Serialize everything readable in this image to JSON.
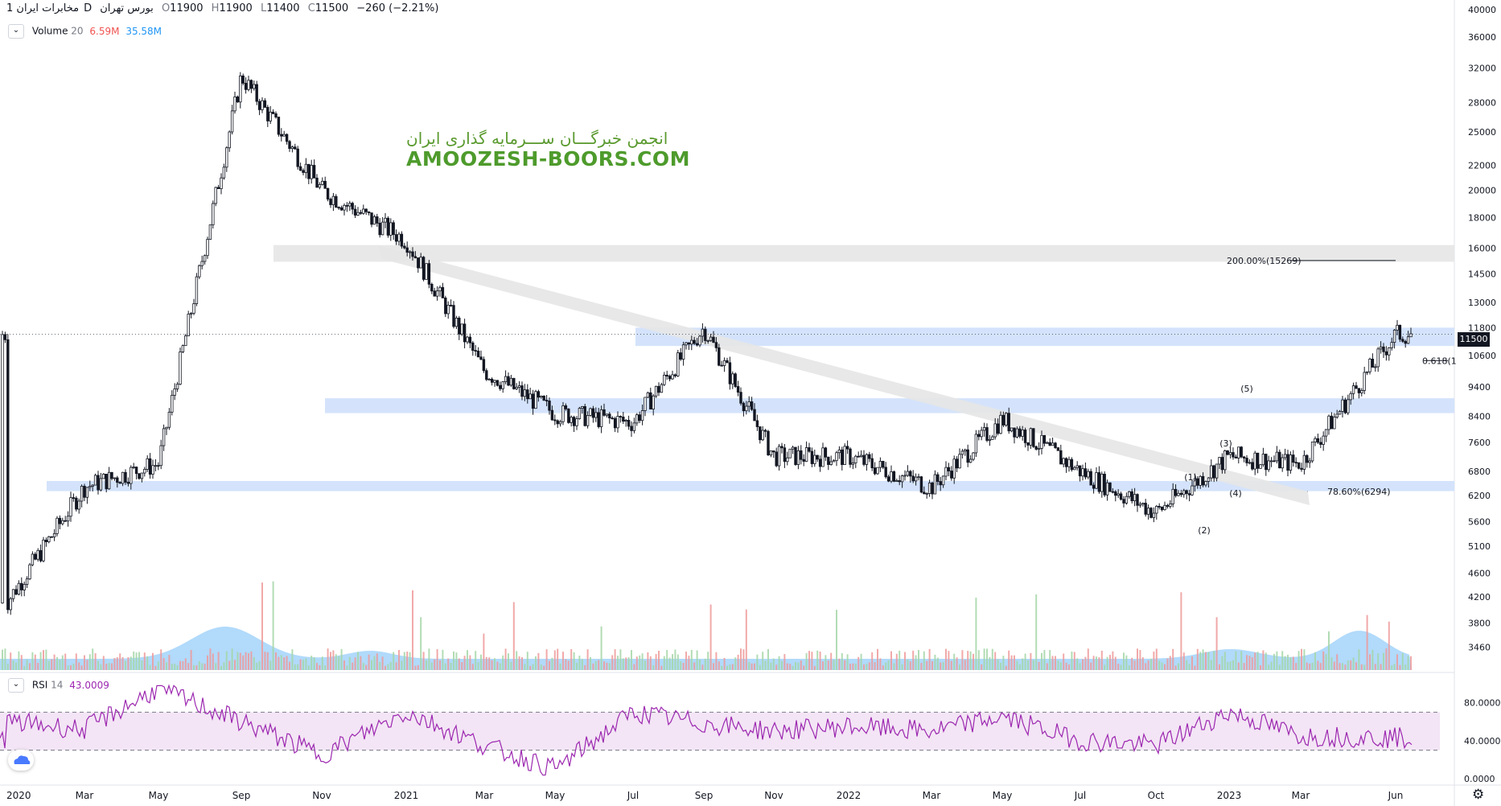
{
  "header": {
    "symbol": "مخابرات ایران",
    "interval": "1D",
    "exchange": "بورس تهران",
    "open_label": "O",
    "open": "11900",
    "high_label": "H",
    "high": "11900",
    "low_label": "L",
    "low": "11400",
    "close_label": "C",
    "close": "11500",
    "change": "−260 (−2.21%)"
  },
  "volume_indicator": {
    "name": "Volume",
    "period": "20",
    "value1": "6.59M",
    "value2": "35.58M"
  },
  "rsi_indicator": {
    "name": "RSI",
    "period": "14",
    "value": "43.0009"
  },
  "watermark": {
    "line1": "انجمن خبرگـــان ســـرمایه گذاری ایران",
    "line2": "AMOOZESH-BOORS.COM"
  },
  "last_price_tag": "11500",
  "colors": {
    "rsi_line": "#9c27b0",
    "rsi_band": "#f3e5f5",
    "volume_area": "#90caf9",
    "zone_blue": "#cfe0fb",
    "zone_grey": "#e6e6e6",
    "candle": "#131722",
    "vol_up": "#a5d6a7",
    "vol_down": "#ef9a9a",
    "watermark": "#4e9b2c"
  },
  "chart_data": {
    "type": "candlestick",
    "y_scale": "log",
    "price_axis_ticks": [
      "40000",
      "36000",
      "32000",
      "28000",
      "25000",
      "22000",
      "20000",
      "18000",
      "16000",
      "14500",
      "13000",
      "11800",
      "10600",
      "9400",
      "8400",
      "7600",
      "6800",
      "6200",
      "5600",
      "5100",
      "4600",
      "4200",
      "3800",
      "3460"
    ],
    "rsi_axis_ticks": [
      "80.0000",
      "40.0000",
      "0.0000"
    ],
    "x_axis_labels": [
      "2020",
      "Mar",
      "May",
      "Sep",
      "Nov",
      "2021",
      "Mar",
      "May",
      "Jul",
      "Sep",
      "Nov",
      "2022",
      "Mar",
      "May",
      "Jul",
      "Oct",
      "2023",
      "Mar",
      "Jun"
    ],
    "price_path": [
      [
        "2020",
        "4100"
      ],
      [
        "Mar",
        "6400"
      ],
      [
        "May",
        "7000"
      ],
      [
        "Sep",
        "31000"
      ],
      [
        "Nov",
        "20000"
      ],
      [
        "2021",
        "16500"
      ],
      [
        "Mar",
        "10000"
      ],
      [
        "May",
        "8500"
      ],
      [
        "Jul",
        "8200"
      ],
      [
        "Sep",
        "11800"
      ],
      [
        "Nov",
        "7200"
      ],
      [
        "2022",
        "7200"
      ],
      [
        "Mar",
        "6400"
      ],
      [
        "May",
        "8300"
      ],
      [
        "Jul",
        "6800"
      ],
      [
        "Oct",
        "5800"
      ],
      [
        "2023",
        "7200"
      ],
      [
        "Mar",
        "7000"
      ],
      [
        "Jun",
        "11500"
      ]
    ],
    "rsi_path": [
      [
        "2020",
        "60"
      ],
      [
        "Mar",
        "52"
      ],
      [
        "May",
        "95"
      ],
      [
        "Sep",
        "60"
      ],
      [
        "Nov",
        "25"
      ],
      [
        "2021",
        "70"
      ],
      [
        "Mar",
        "35"
      ],
      [
        "May",
        "10"
      ],
      [
        "Jul",
        "70"
      ],
      [
        "Sep",
        "58"
      ],
      [
        "Nov",
        "50"
      ],
      [
        "2022",
        "55"
      ],
      [
        "Mar",
        "50"
      ],
      [
        "May",
        "65"
      ],
      [
        "Jul",
        "40"
      ],
      [
        "Oct",
        "35"
      ],
      [
        "2023",
        "70"
      ],
      [
        "Mar",
        "45"
      ],
      [
        "Jun",
        "43"
      ]
    ],
    "horizontal_zones": [
      {
        "low": 11000,
        "high": 11800,
        "kind": "support"
      },
      {
        "low": 8500,
        "high": 9000,
        "kind": "support"
      },
      {
        "low": 6300,
        "high": 6550,
        "kind": "support"
      },
      {
        "low": 15200,
        "high": 16200,
        "kind": "resistance"
      }
    ],
    "annotations": [
      {
        "text": "200.00%(15269)",
        "price": 15269
      },
      {
        "text": "0.618(1",
        "price": 10400
      },
      {
        "text": "78.60%(6294)",
        "price": 6294
      },
      {
        "text": "(1)",
        "wave": 1
      },
      {
        "text": "(2)",
        "wave": 2
      },
      {
        "text": "(3)",
        "wave": 3
      },
      {
        "text": "(4)",
        "wave": 4
      },
      {
        "text": "(5)",
        "wave": 5
      }
    ],
    "rsi_levels": [
      70,
      30
    ]
  }
}
